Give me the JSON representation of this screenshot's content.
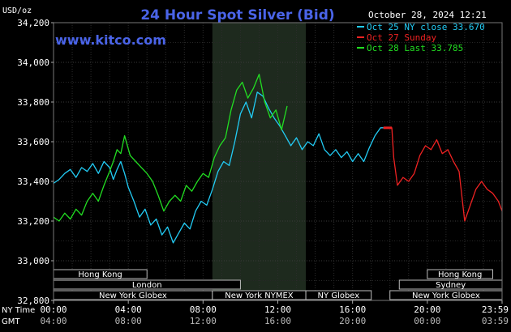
{
  "chart_data": {
    "type": "line",
    "title": "24 Hour Spot Silver (Bid)",
    "subtitle": "October 28, 2024 12:21",
    "watermark": "www.kitco.com",
    "ylabel": "USD/oz",
    "ylim": [
      32.8,
      34.2
    ],
    "yticks": [
      "34,200",
      "34,000",
      "33,800",
      "33,600",
      "33,400",
      "33,200",
      "33,000",
      "32,800"
    ],
    "ytick_values": [
      34.2,
      34.0,
      33.8,
      33.6,
      33.4,
      33.2,
      33.0,
      32.8
    ],
    "xlim": [
      0,
      24
    ],
    "x_rows": [
      {
        "label": "NY Time",
        "ticks": [
          "00:00",
          "04:00",
          "08:00",
          "12:00",
          "16:00",
          "20:00",
          "23:59"
        ]
      },
      {
        "label": "GMT",
        "ticks": [
          "04:00",
          "08:00",
          "12:00",
          "16:00",
          "20:00",
          "00:00",
          "03:59"
        ]
      }
    ],
    "xtick_hours": [
      0,
      4,
      8,
      12,
      16,
      20,
      24
    ],
    "grid": true,
    "legend_position": "top-right",
    "highlight_range_hours": [
      8.5,
      13.5
    ],
    "series": [
      {
        "name": "Oct 25 NY close 33.670",
        "color": "#22ccf5",
        "x": [
          0,
          0.3,
          0.6,
          0.9,
          1.2,
          1.5,
          1.8,
          2.1,
          2.4,
          2.7,
          3.0,
          3.2,
          3.4,
          3.6,
          3.8,
          4.0,
          4.3,
          4.6,
          4.9,
          5.2,
          5.5,
          5.8,
          6.1,
          6.4,
          6.7,
          7.0,
          7.3,
          7.6,
          7.9,
          8.2,
          8.5,
          8.8,
          9.1,
          9.4,
          9.7,
          10.0,
          10.3,
          10.6,
          10.9,
          11.2,
          11.5,
          11.8,
          12.1,
          12.4,
          12.7,
          13.0,
          13.3,
          13.6,
          13.9,
          14.2,
          14.5,
          14.8,
          15.1,
          15.4,
          15.7,
          16.0,
          16.3,
          16.6,
          16.9,
          17.2,
          17.5,
          17.65
        ],
        "y": [
          33.39,
          33.41,
          33.44,
          33.46,
          33.42,
          33.47,
          33.45,
          33.49,
          33.44,
          33.5,
          33.47,
          33.41,
          33.46,
          33.5,
          33.44,
          33.37,
          33.3,
          33.22,
          33.26,
          33.18,
          33.21,
          33.13,
          33.17,
          33.09,
          33.14,
          33.19,
          33.16,
          33.25,
          33.3,
          33.28,
          33.36,
          33.45,
          33.5,
          33.48,
          33.6,
          33.74,
          33.8,
          33.72,
          33.85,
          33.83,
          33.77,
          33.72,
          33.68,
          33.63,
          33.58,
          33.62,
          33.56,
          33.6,
          33.58,
          33.64,
          33.56,
          33.53,
          33.56,
          33.52,
          33.55,
          33.5,
          33.54,
          33.5,
          33.57,
          33.63,
          33.67,
          33.67
        ]
      },
      {
        "name": "Oct 27 Sunday",
        "color": "#ee2222",
        "x": [
          17.65,
          18.1,
          18.2,
          18.4,
          18.7,
          19.0,
          19.3,
          19.6,
          19.9,
          20.2,
          20.5,
          20.8,
          21.1,
          21.4,
          21.7,
          22.0,
          22.3,
          22.6,
          22.9,
          23.2,
          23.5,
          23.8,
          24.0
        ],
        "y": [
          33.67,
          33.67,
          33.52,
          33.38,
          33.42,
          33.4,
          33.44,
          33.53,
          33.58,
          33.56,
          33.61,
          33.54,
          33.56,
          33.5,
          33.45,
          33.2,
          33.28,
          33.36,
          33.4,
          33.36,
          33.34,
          33.3,
          33.25
        ]
      },
      {
        "name": "Oct 28 Last 33.785",
        "color": "#22dd22",
        "x": [
          0,
          0.3,
          0.6,
          0.9,
          1.2,
          1.5,
          1.8,
          2.1,
          2.4,
          2.7,
          3.0,
          3.2,
          3.4,
          3.6,
          3.8,
          4.1,
          4.4,
          4.7,
          5.0,
          5.3,
          5.6,
          5.9,
          6.2,
          6.5,
          6.8,
          7.1,
          7.4,
          7.7,
          8.0,
          8.3,
          8.6,
          8.9,
          9.2,
          9.5,
          9.8,
          10.1,
          10.4,
          10.7,
          11.0,
          11.3,
          11.6,
          11.9,
          12.2,
          12.5
        ],
        "y": [
          33.22,
          33.2,
          33.24,
          33.21,
          33.26,
          33.23,
          33.3,
          33.34,
          33.3,
          33.38,
          33.45,
          33.5,
          33.56,
          33.54,
          33.63,
          33.53,
          33.5,
          33.47,
          33.44,
          33.4,
          33.33,
          33.25,
          33.3,
          33.33,
          33.3,
          33.38,
          33.35,
          33.4,
          33.44,
          33.42,
          33.52,
          33.58,
          33.62,
          33.76,
          33.86,
          33.9,
          33.82,
          33.87,
          33.94,
          33.8,
          33.72,
          33.76,
          33.66,
          33.78
        ]
      }
    ],
    "sessions": [
      {
        "label": "Hong Kong",
        "start": 0,
        "end": 5.0,
        "row": 0
      },
      {
        "label": "London",
        "start": 0,
        "end": 10.0,
        "row": 1
      },
      {
        "label": "New York Globex",
        "start": 0,
        "end": 8.5,
        "row": 2
      },
      {
        "label": "New York NYMEX",
        "start": 8.5,
        "end": 13.5,
        "row": 2
      },
      {
        "label": "NY Globex",
        "start": 13.5,
        "end": 17.0,
        "row": 2
      },
      {
        "label": "Hong Kong",
        "start": 20.0,
        "end": 23.5,
        "row": 0
      },
      {
        "label": "Sydney",
        "start": 18.5,
        "end": 24.0,
        "row": 1
      },
      {
        "label": "New York Globex",
        "start": 18.0,
        "end": 24.0,
        "row": 2
      }
    ]
  }
}
